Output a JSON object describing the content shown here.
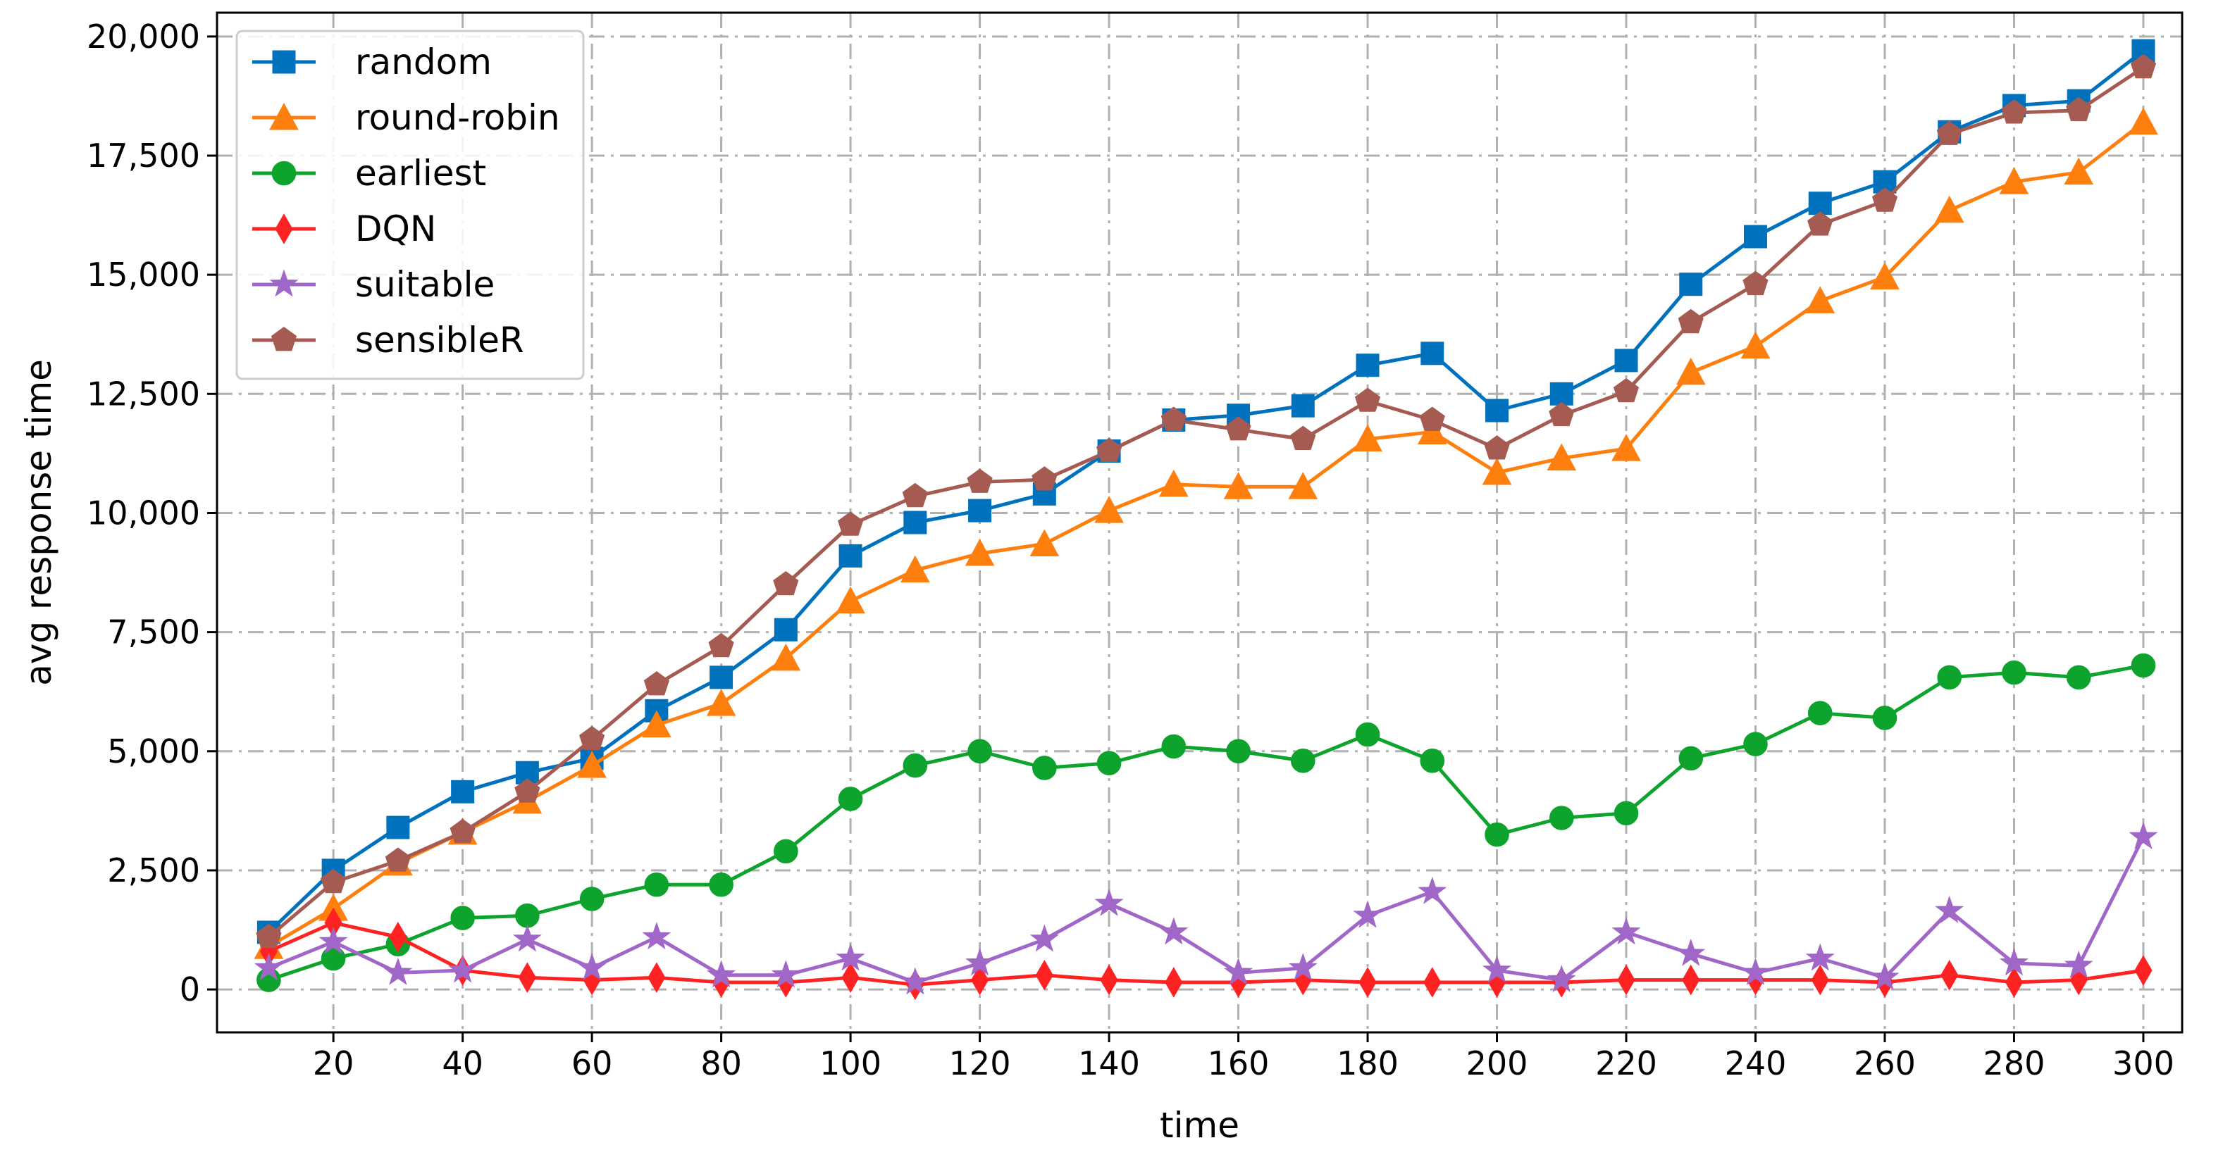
{
  "chart_data": {
    "type": "line",
    "xlabel": "time",
    "ylabel": "avg response time",
    "xlim": [
      2,
      306
    ],
    "ylim": [
      -900,
      20500
    ],
    "x_ticks": [
      20,
      40,
      60,
      80,
      100,
      120,
      140,
      160,
      180,
      200,
      220,
      240,
      260,
      280,
      300
    ],
    "y_ticks": [
      0,
      2500,
      5000,
      7500,
      10000,
      12500,
      15000,
      17500,
      20000
    ],
    "y_tick_labels": [
      "0",
      "2,500",
      "5,000",
      "7,500",
      "10,000",
      "12,500",
      "15,000",
      "17,500",
      "20,000"
    ],
    "grid": true,
    "legend_position": "top-left",
    "x": [
      10,
      20,
      30,
      40,
      50,
      60,
      70,
      80,
      90,
      100,
      110,
      120,
      130,
      140,
      150,
      160,
      170,
      180,
      190,
      200,
      210,
      220,
      230,
      240,
      250,
      260,
      270,
      280,
      290,
      300
    ],
    "series": [
      {
        "name": "random",
        "color": "#0072bd",
        "marker": "square",
        "values": [
          1200,
          2500,
          3400,
          4150,
          4550,
          4850,
          5850,
          6550,
          7550,
          9100,
          9800,
          10050,
          10400,
          11300,
          11950,
          12050,
          12250,
          13100,
          13350,
          12150,
          12500,
          13200,
          14800,
          15800,
          16500,
          16950,
          18000,
          18550,
          18650,
          19700
        ]
      },
      {
        "name": "round-robin",
        "color": "#ff7f0e",
        "marker": "triangle",
        "values": [
          900,
          1700,
          2650,
          3300,
          3950,
          4700,
          5550,
          6000,
          6950,
          8150,
          8800,
          9150,
          9350,
          10050,
          10600,
          10550,
          10550,
          11550,
          11700,
          10850,
          11150,
          11350,
          12950,
          13500,
          14450,
          14950,
          16350,
          16950,
          17150,
          18200
        ]
      },
      {
        "name": "earliest",
        "color": "#0da32c",
        "marker": "circle",
        "values": [
          200,
          650,
          950,
          1500,
          1550,
          1900,
          2200,
          2200,
          2900,
          4000,
          4700,
          5000,
          4650,
          4750,
          5100,
          5000,
          4800,
          5350,
          4800,
          3250,
          3600,
          3700,
          4850,
          5150,
          5800,
          5700,
          6550,
          6650,
          6550,
          6800
        ]
      },
      {
        "name": "DQN",
        "color": "#ff2222",
        "marker": "diamond",
        "values": [
          800,
          1400,
          1100,
          400,
          250,
          200,
          250,
          150,
          150,
          250,
          100,
          200,
          300,
          200,
          150,
          150,
          200,
          150,
          150,
          150,
          150,
          200,
          200,
          200,
          200,
          150,
          300,
          150,
          200,
          400
        ]
      },
      {
        "name": "suitable",
        "color": "#a066c8",
        "marker": "star",
        "values": [
          450,
          1000,
          350,
          400,
          1050,
          450,
          1100,
          300,
          300,
          650,
          150,
          550,
          1050,
          1800,
          1200,
          350,
          450,
          1550,
          2050,
          400,
          200,
          1200,
          750,
          350,
          650,
          250,
          1650,
          550,
          500,
          3200
        ]
      },
      {
        "name": "sensibleR",
        "color": "#a55a52",
        "marker": "pentagon",
        "values": [
          1100,
          2250,
          2700,
          3300,
          4150,
          5250,
          6400,
          7200,
          8500,
          9750,
          10350,
          10650,
          10700,
          11300,
          11950,
          11750,
          11550,
          12350,
          11950,
          11350,
          12050,
          12550,
          14000,
          14800,
          16050,
          16550,
          17950,
          18400,
          18450,
          19350
        ]
      }
    ]
  }
}
